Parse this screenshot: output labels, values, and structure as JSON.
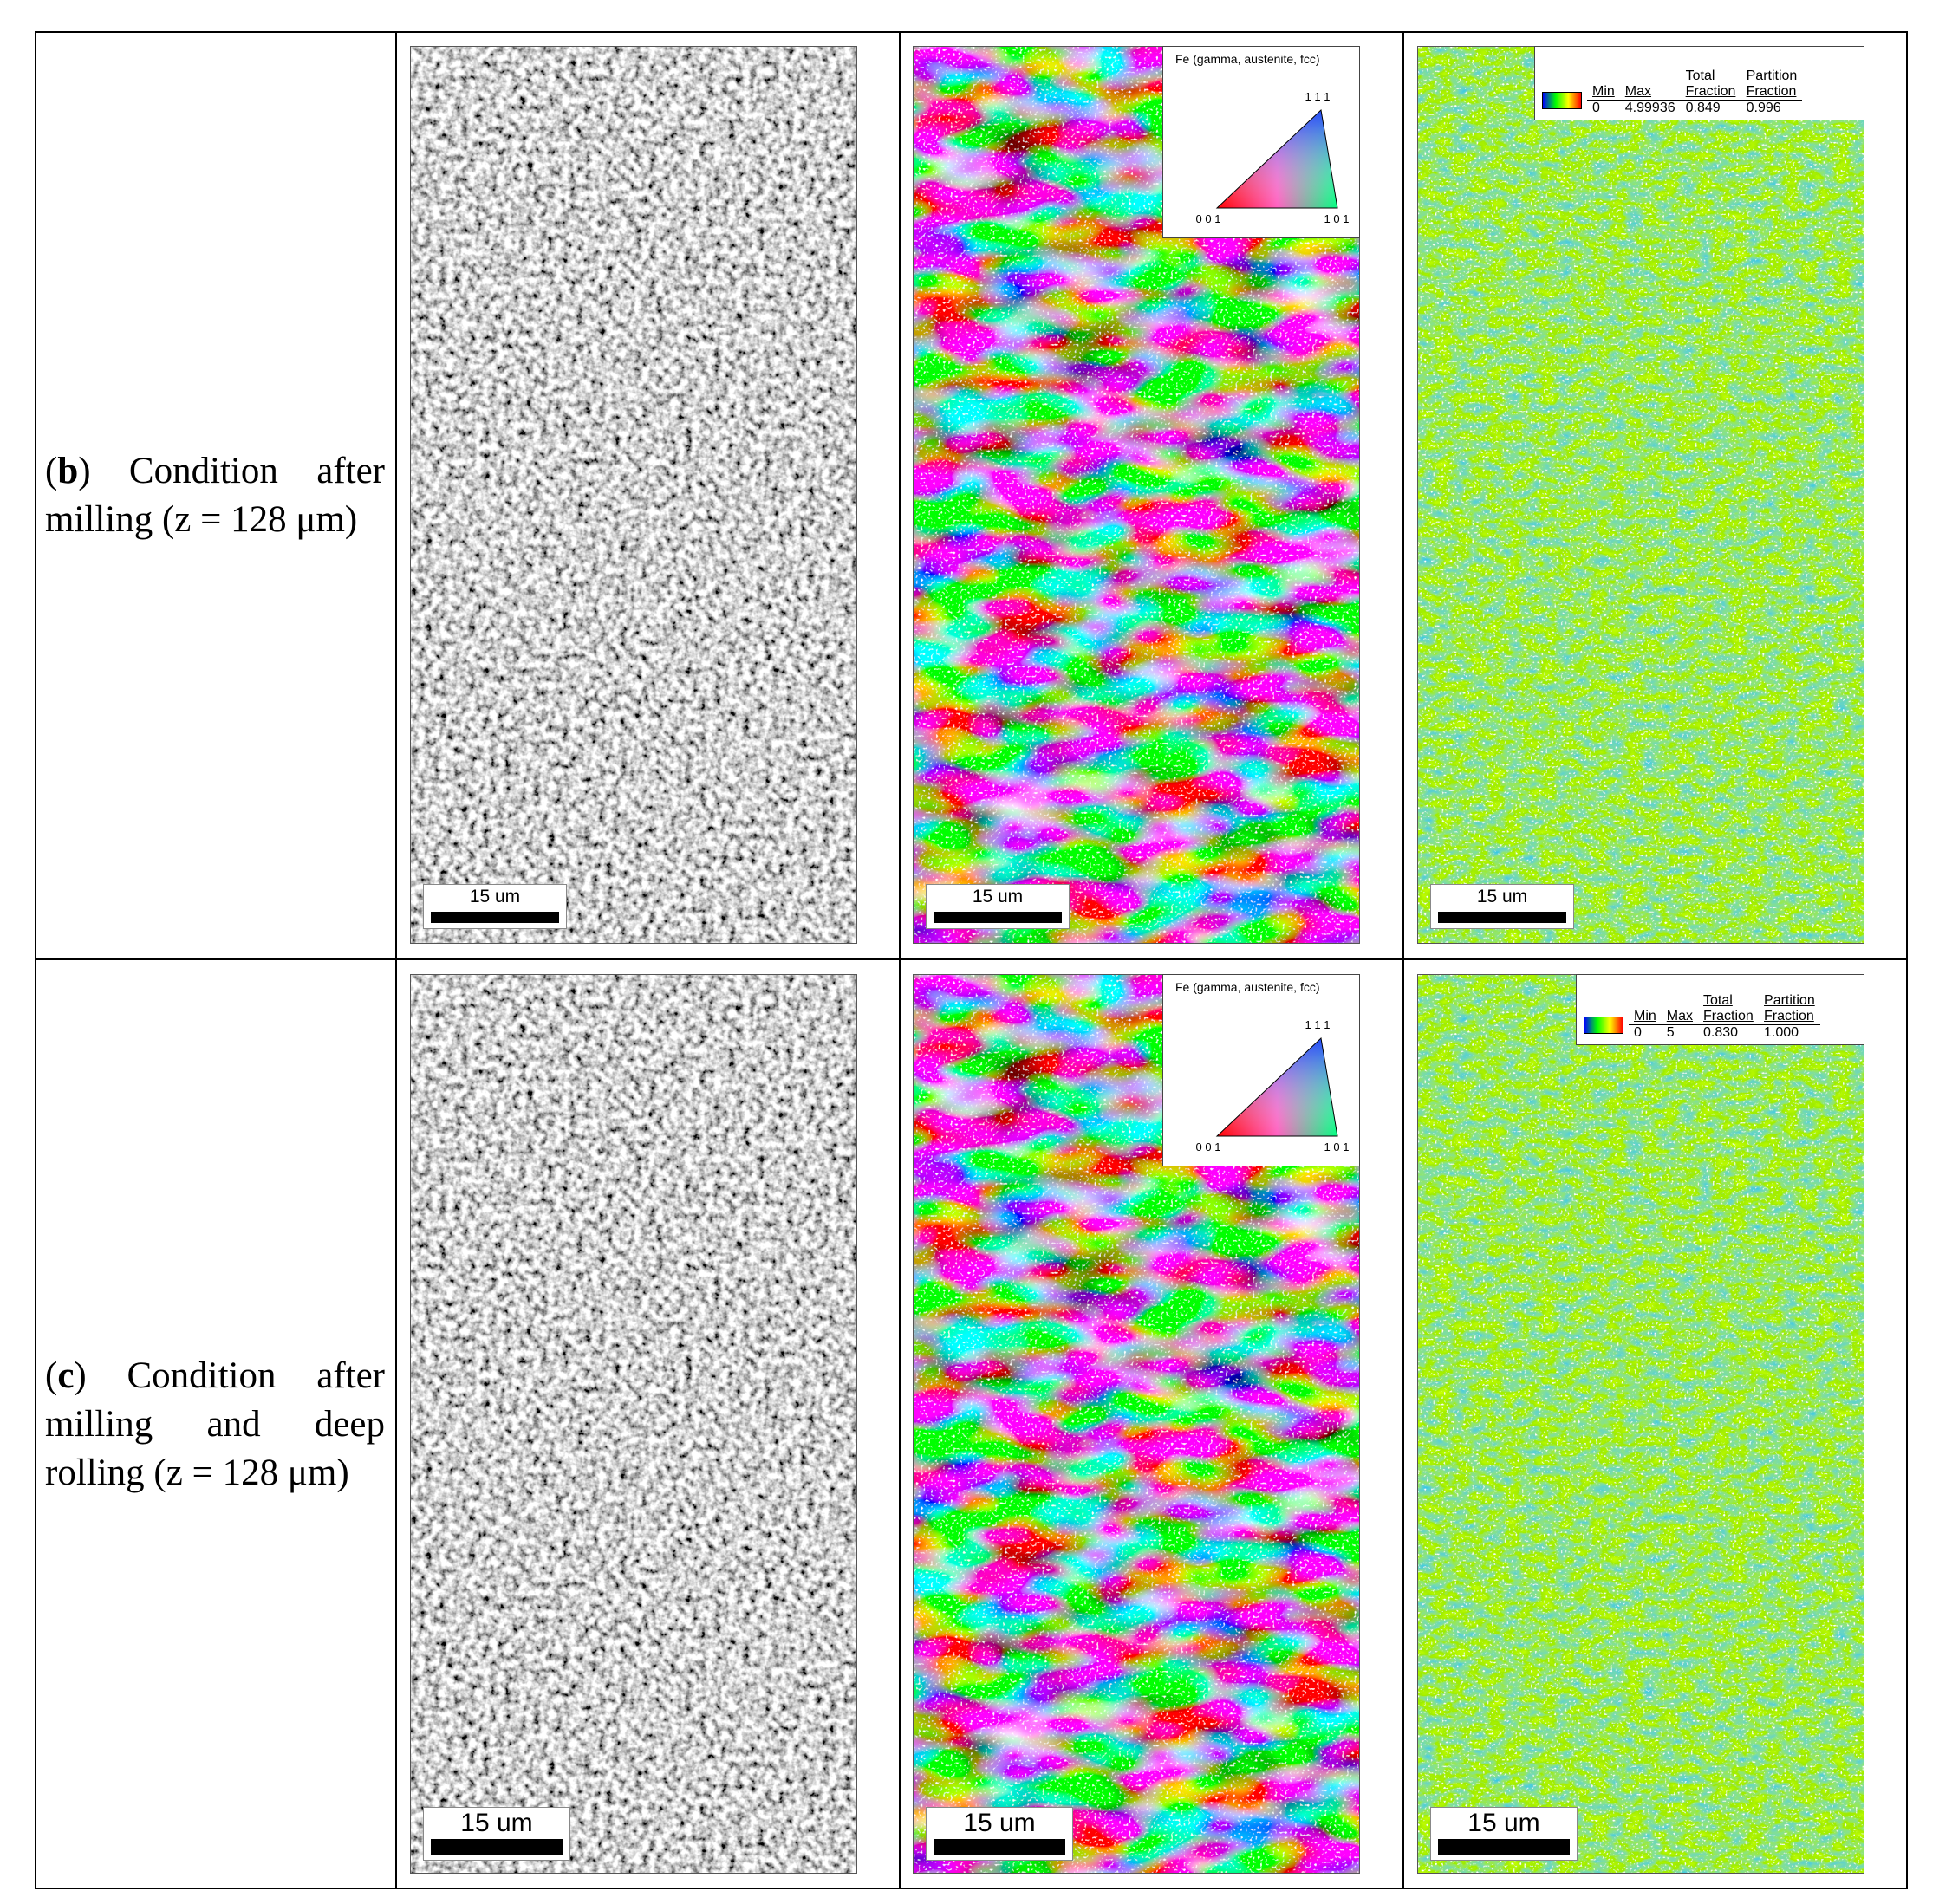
{
  "rows": [
    {
      "label_parts": [
        "(",
        "b",
        ") Condition after milling (z = 128 μm)"
      ],
      "scale_bars": [
        "15 um",
        "15 um",
        "15 um"
      ],
      "ipf_legend": {
        "title": "Fe (gamma, austenite, fcc)",
        "top": "1 1 1",
        "bottom_left": "0 0 1",
        "bottom_right": "1 0 1"
      },
      "kam_legend": {
        "headers": [
          "Min",
          "Max",
          "Total Fraction",
          "Partition Fraction"
        ],
        "values": [
          "0",
          "4.99936",
          "0.849",
          "0.996"
        ]
      }
    },
    {
      "label_parts": [
        "(",
        "c",
        ") Condition after milling and deep rolling (z = 128 μm)"
      ],
      "scale_bars": [
        "15 um",
        "15 um",
        "15 um"
      ],
      "ipf_legend": {
        "title": "Fe (gamma, austenite, fcc)",
        "top": "1 1 1",
        "bottom_left": "0 0 1",
        "bottom_right": "1 0 1"
      },
      "kam_legend": {
        "headers": [
          "Min",
          "Max",
          "Total Fraction",
          "Partition Fraction"
        ],
        "values": [
          "0",
          "5",
          "0.830",
          "1.000"
        ]
      }
    }
  ]
}
